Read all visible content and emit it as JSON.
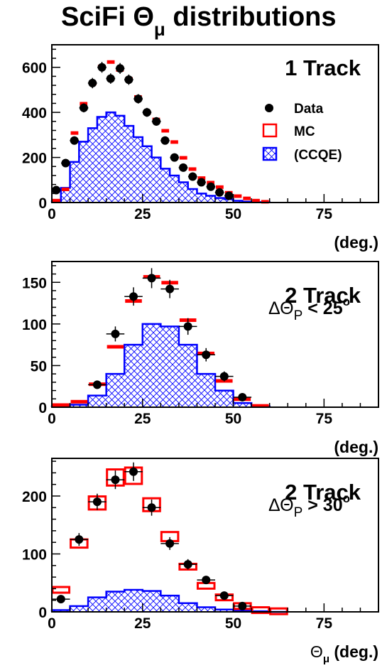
{
  "figure": {
    "title_main": "SciFi Θ",
    "title_sub": "μ",
    "title_rest": " distributions"
  },
  "chart_data": [
    {
      "type": "histogram",
      "panel_label": "1 Track",
      "panel_cut": "",
      "xlabel": "(deg.)",
      "xlim": [
        0,
        90
      ],
      "ylim": [
        0,
        700
      ],
      "xticks": [
        0,
        25,
        50,
        75
      ],
      "yticks": [
        0,
        200,
        400,
        600
      ],
      "legend": {
        "position": "top-right",
        "entries": [
          "Data",
          "MC",
          "(CCQE)"
        ]
      },
      "bin_edges": [
        0,
        2.5,
        5,
        7.5,
        10,
        12.5,
        15,
        17.5,
        20,
        22.5,
        25,
        27.5,
        30,
        32.5,
        35,
        37.5,
        40,
        42.5,
        45,
        47.5,
        50,
        52.5,
        55,
        57.5,
        60
      ],
      "mc": [
        10,
        60,
        310,
        440,
        530,
        605,
        625,
        590,
        550,
        470,
        400,
        370,
        320,
        270,
        200,
        150,
        110,
        90,
        70,
        45,
        30,
        20,
        10,
        5
      ],
      "ccqe": [
        5,
        65,
        180,
        270,
        330,
        380,
        400,
        385,
        340,
        290,
        250,
        200,
        150,
        120,
        90,
        60,
        40,
        30,
        20,
        15,
        8,
        4,
        2,
        1
      ],
      "data_x": [
        1.2,
        3.8,
        6.2,
        8.8,
        11.2,
        13.8,
        16.2,
        18.8,
        21.2,
        23.8,
        26.2,
        28.8,
        31.2,
        33.8,
        36.2,
        38.8,
        41.2,
        43.8,
        46.2,
        48.8
      ],
      "data_y": [
        55,
        175,
        275,
        420,
        530,
        600,
        550,
        595,
        545,
        460,
        400,
        360,
        275,
        200,
        155,
        115,
        90,
        70,
        45,
        30
      ],
      "data_err": [
        8,
        13,
        17,
        20,
        23,
        24,
        23,
        24,
        23,
        21,
        20,
        19,
        17,
        14,
        12,
        11,
        9,
        8,
        7,
        5
      ]
    },
    {
      "type": "histogram",
      "panel_label": "2 Track",
      "panel_cut": "ΔΘ",
      "panel_cut_sub": "P",
      "panel_cut_rest": " < 25",
      "panel_cut_sup": "o",
      "xlabel": "(deg.)",
      "xlim": [
        0,
        90
      ],
      "ylim": [
        0,
        175
      ],
      "xticks": [
        0,
        25,
        50,
        75
      ],
      "yticks": [
        0,
        50,
        100,
        150
      ],
      "bin_edges": [
        0,
        5,
        10,
        15,
        20,
        25,
        30,
        35,
        40,
        45,
        50,
        55,
        60
      ],
      "mc": [
        3,
        7,
        28,
        73,
        128,
        157,
        150,
        105,
        65,
        32,
        10,
        2
      ],
      "ccqe": [
        1,
        3,
        14,
        40,
        75,
        100,
        97,
        75,
        40,
        20,
        5,
        1
      ],
      "data_x": [
        12.5,
        17.5,
        22.5,
        27.5,
        32.5,
        37.5,
        42.5,
        47.5,
        52.5
      ],
      "data_y": [
        27,
        88,
        133,
        155,
        142,
        97,
        63,
        37,
        12
      ],
      "data_err": [
        5,
        9,
        11,
        12,
        11,
        10,
        8,
        6,
        3
      ]
    },
    {
      "type": "histogram",
      "panel_label": "2 Track",
      "panel_cut": "ΔΘ",
      "panel_cut_sub": "P",
      "panel_cut_rest": " > 30",
      "panel_cut_sup": "o",
      "xlabel_sym": "Θ",
      "xlabel_sub": "μ",
      "xlabel_rest": " (deg.)",
      "xlim": [
        0,
        90
      ],
      "ylim": [
        0,
        265
      ],
      "xticks": [
        0,
        25,
        50,
        75
      ],
      "yticks": [
        0,
        100,
        200
      ],
      "bin_edges": [
        0,
        5,
        10,
        15,
        20,
        25,
        30,
        35,
        40,
        45,
        50,
        55,
        60,
        65
      ],
      "mc": [
        38,
        118,
        188,
        232,
        235,
        185,
        130,
        78,
        45,
        25,
        10,
        3,
        1
      ],
      "ccqe": [
        3,
        10,
        25,
        35,
        38,
        36,
        28,
        15,
        8,
        4,
        2,
        1,
        0
      ],
      "data_x": [
        2.5,
        7.5,
        12.5,
        17.5,
        22.5,
        27.5,
        32.5,
        37.5,
        42.5,
        47.5,
        52.5
      ],
      "data_y": [
        22,
        125,
        190,
        228,
        242,
        180,
        118,
        82,
        55,
        28,
        10
      ],
      "data_err": [
        5,
        11,
        14,
        16,
        16,
        14,
        11,
        9,
        7,
        5,
        3
      ]
    }
  ],
  "colors": {
    "mc": "#ff0000",
    "ccqe": "#0000ff",
    "data": "#000000"
  }
}
